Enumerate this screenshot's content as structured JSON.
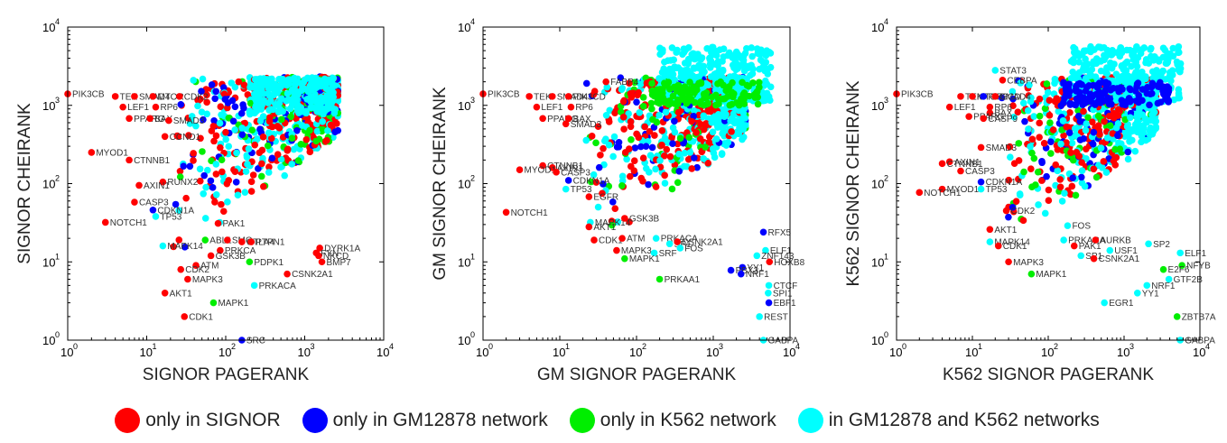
{
  "colors": {
    "only_signor": "#ff0000",
    "only_gm": "#0000ff",
    "only_k562": "#00ee00",
    "both": "#00ffff"
  },
  "legend": [
    {
      "label": "only in SIGNOR",
      "color": "#ff0000"
    },
    {
      "label": "only in GM12878 network",
      "color": "#0000ff"
    },
    {
      "label": "only in K562 network",
      "color": "#00ee00"
    },
    {
      "label": "in GM12878 and K562  networks",
      "color": "#00ffff"
    }
  ],
  "chart_data": [
    {
      "type": "scatter",
      "xlabel": "SIGNOR PAGERANK",
      "ylabel": "SIGNOR CHEIRANK",
      "xscale": "log",
      "yscale": "log",
      "xlim": [
        1,
        10000
      ],
      "ylim": [
        1,
        10000
      ],
      "x_ticks": [
        "10^0",
        "10^1",
        "10^2",
        "10^3",
        "10^4"
      ],
      "y_ticks": [
        "10^0",
        "10^1",
        "10^2",
        "10^3",
        "10^4"
      ],
      "labeled_points": [
        {
          "label": "PIK3CB",
          "x": 1,
          "y": 1400,
          "group": "only_signor"
        },
        {
          "label": "TEK",
          "x": 4,
          "y": 1300,
          "group": "only_signor"
        },
        {
          "label": "SMAD4",
          "x": 7,
          "y": 1300,
          "group": "only_signor"
        },
        {
          "label": "MTOR",
          "x": 12,
          "y": 1300,
          "group": "only_signor"
        },
        {
          "label": "CDK2",
          "x": 26,
          "y": 1300,
          "group": "only_signor"
        },
        {
          "label": "LEF1",
          "x": 5,
          "y": 950,
          "group": "only_signor"
        },
        {
          "label": "RP6",
          "x": 13,
          "y": 950,
          "group": "only_signor"
        },
        {
          "label": "PPARG",
          "x": 6,
          "y": 680,
          "group": "only_signor"
        },
        {
          "label": "BAX",
          "x": 11,
          "y": 680,
          "group": "only_signor"
        },
        {
          "label": "SMAD3",
          "x": 19,
          "y": 640,
          "group": "only_signor"
        },
        {
          "label": "CCND1",
          "x": 17,
          "y": 400,
          "group": "only_signor"
        },
        {
          "label": "MYOD1",
          "x": 2,
          "y": 250,
          "group": "only_signor"
        },
        {
          "label": "CTNNB1",
          "x": 6,
          "y": 200,
          "group": "only_signor"
        },
        {
          "label": "RUNX2",
          "x": 16,
          "y": 105,
          "group": "only_signor"
        },
        {
          "label": "AXIN1",
          "x": 8,
          "y": 95,
          "group": "only_signor"
        },
        {
          "label": "CASP3",
          "x": 7,
          "y": 58,
          "group": "only_signor"
        },
        {
          "label": "CDKN1A",
          "x": 12,
          "y": 46,
          "group": "only_gm"
        },
        {
          "label": "TP53",
          "x": 13,
          "y": 38,
          "group": "both"
        },
        {
          "label": "NOTCH1",
          "x": 3,
          "y": 32,
          "group": "only_signor"
        },
        {
          "label": "PAK1",
          "x": 80,
          "y": 31,
          "group": "only_signor"
        },
        {
          "label": "ABL1",
          "x": 55,
          "y": 19,
          "group": "only_k562"
        },
        {
          "label": "SMO",
          "x": 105,
          "y": 19,
          "group": "only_signor"
        },
        {
          "label": "CTLA4",
          "x": 160,
          "y": 18,
          "group": "only_signor"
        },
        {
          "label": "PTPN1",
          "x": 210,
          "y": 18,
          "group": "only_signor"
        },
        {
          "label": "MAPK14",
          "x": 16,
          "y": 16,
          "group": "both"
        },
        {
          "label": "PRKCA",
          "x": 85,
          "y": 14,
          "group": "only_signor"
        },
        {
          "label": "GSK3B",
          "x": 65,
          "y": 12,
          "group": "only_signor"
        },
        {
          "label": "DYRK1A",
          "x": 1550,
          "y": 15,
          "group": "only_signor"
        },
        {
          "label": "FYN",
          "x": 1400,
          "y": 13,
          "group": "only_signor"
        },
        {
          "label": "NKCD",
          "x": 1500,
          "y": 12,
          "group": "only_signor"
        },
        {
          "label": "BMP7",
          "x": 1650,
          "y": 10,
          "group": "only_signor"
        },
        {
          "label": "PDPK1",
          "x": 200,
          "y": 10,
          "group": "only_k562"
        },
        {
          "label": "ATM",
          "x": 42,
          "y": 9,
          "group": "only_signor"
        },
        {
          "label": "CDK2",
          "x": 27,
          "y": 8,
          "group": "only_signor"
        },
        {
          "label": "MAPK3",
          "x": 33,
          "y": 6,
          "group": "only_signor"
        },
        {
          "label": "CSNK2A1",
          "x": 600,
          "y": 7,
          "group": "only_signor"
        },
        {
          "label": "PRKACA",
          "x": 230,
          "y": 5,
          "group": "both"
        },
        {
          "label": "AKT1",
          "x": 17,
          "y": 4,
          "group": "only_signor"
        },
        {
          "label": "MAPK1",
          "x": 70,
          "y": 3,
          "group": "only_k562"
        },
        {
          "label": "CDK1",
          "x": 30,
          "y": 2,
          "group": "only_signor"
        },
        {
          "label": "SRC",
          "x": 160,
          "y": 1,
          "group": "only_gm"
        }
      ]
    },
    {
      "type": "scatter",
      "xlabel": "GM SIGNOR PAGERANK",
      "ylabel": "GM SIGNOR CHEIRANK",
      "xscale": "log",
      "yscale": "log",
      "xlim": [
        1,
        10000
      ],
      "ylim": [
        1,
        10000
      ],
      "x_ticks": [
        "10^0",
        "10^1",
        "10^2",
        "10^3",
        "10^4"
      ],
      "y_ticks": [
        "10^0",
        "10^1",
        "10^2",
        "10^3",
        "10^4"
      ],
      "labeled_points": [
        {
          "label": "PIK3CB",
          "x": 1,
          "y": 1400,
          "group": "only_signor"
        },
        {
          "label": "TEK",
          "x": 4,
          "y": 1300,
          "group": "only_signor"
        },
        {
          "label": "SMAD4",
          "x": 8,
          "y": 1300,
          "group": "only_signor"
        },
        {
          "label": "PIK3CD",
          "x": 13,
          "y": 1300,
          "group": "only_signor"
        },
        {
          "label": "FABP4",
          "x": 40,
          "y": 2000,
          "group": "only_signor"
        },
        {
          "label": "LEF1",
          "x": 5,
          "y": 950,
          "group": "only_signor"
        },
        {
          "label": "RP6",
          "x": 14,
          "y": 950,
          "group": "only_signor"
        },
        {
          "label": "PPARG",
          "x": 6,
          "y": 680,
          "group": "only_signor"
        },
        {
          "label": "BAX",
          "x": 13,
          "y": 680,
          "group": "only_signor"
        },
        {
          "label": "SMAD3",
          "x": 12,
          "y": 580,
          "group": "only_signor"
        },
        {
          "label": "CTNNB1",
          "x": 6,
          "y": 170,
          "group": "only_signor"
        },
        {
          "label": "AXIN1",
          "x": 8,
          "y": 160,
          "group": "only_signor"
        },
        {
          "label": "MYOD1",
          "x": 3,
          "y": 150,
          "group": "only_signor"
        },
        {
          "label": "CASP3",
          "x": 9,
          "y": 140,
          "group": "only_signor"
        },
        {
          "label": "CDKN1A",
          "x": 13,
          "y": 110,
          "group": "only_gm"
        },
        {
          "label": "TP53",
          "x": 12,
          "y": 85,
          "group": "both"
        },
        {
          "label": "EGFR",
          "x": 24,
          "y": 68,
          "group": "only_signor"
        },
        {
          "label": "NOTCH1",
          "x": 2,
          "y": 43,
          "group": "only_signor"
        },
        {
          "label": "MAPK14",
          "x": 25,
          "y": 32,
          "group": "both"
        },
        {
          "label": "AKT1",
          "x": 24,
          "y": 28,
          "group": "only_signor"
        },
        {
          "label": "GSK3B",
          "x": 70,
          "y": 36,
          "group": "only_signor"
        },
        {
          "label": "RFX5",
          "x": 4500,
          "y": 24,
          "group": "only_gm"
        },
        {
          "label": "CDK1",
          "x": 28,
          "y": 19,
          "group": "only_signor"
        },
        {
          "label": "ATM",
          "x": 65,
          "y": 20,
          "group": "only_signor"
        },
        {
          "label": "PRKACA",
          "x": 180,
          "y": 20,
          "group": "both"
        },
        {
          "label": "SP1",
          "x": 270,
          "y": 17,
          "group": "both"
        },
        {
          "label": "CSNK2A1",
          "x": 340,
          "y": 18,
          "group": "only_signor"
        },
        {
          "label": "FOS",
          "x": 370,
          "y": 15,
          "group": "both"
        },
        {
          "label": "ELF1",
          "x": 4800,
          "y": 14,
          "group": "both"
        },
        {
          "label": "ZNF143",
          "x": 3700,
          "y": 12,
          "group": "both"
        },
        {
          "label": "MAPK3",
          "x": 55,
          "y": 14,
          "group": "only_signor"
        },
        {
          "label": "SRF",
          "x": 170,
          "y": 13,
          "group": "both"
        },
        {
          "label": "HOXB8",
          "x": 5400,
          "y": 10,
          "group": "only_signor"
        },
        {
          "label": "MAPK1",
          "x": 70,
          "y": 11,
          "group": "only_k562"
        },
        {
          "label": "YY1",
          "x": 2400,
          "y": 8.5,
          "group": "only_gm"
        },
        {
          "label": "PBX3",
          "x": 1700,
          "y": 7.8,
          "group": "only_gm"
        },
        {
          "label": "NRF1",
          "x": 2300,
          "y": 7,
          "group": "only_gm"
        },
        {
          "label": "PRKAA1",
          "x": 200,
          "y": 6,
          "group": "only_k562"
        },
        {
          "label": "CTCF",
          "x": 5300,
          "y": 5,
          "group": "both"
        },
        {
          "label": "SPI1",
          "x": 5200,
          "y": 4,
          "group": "both"
        },
        {
          "label": "EBF1",
          "x": 5300,
          "y": 3,
          "group": "only_gm"
        },
        {
          "label": "REST",
          "x": 4000,
          "y": 2,
          "group": "both"
        },
        {
          "label": "GABPA",
          "x": 4500,
          "y": 1,
          "group": "both"
        }
      ]
    },
    {
      "type": "scatter",
      "xlabel": "K562 SIGNOR PAGERANK",
      "ylabel": "K562 SIGNOR CHEIRANK",
      "xscale": "log",
      "yscale": "log",
      "xlim": [
        1,
        10000
      ],
      "ylim": [
        1,
        10000
      ],
      "x_ticks": [
        "10^0",
        "10^1",
        "10^2",
        "10^3",
        "10^4"
      ],
      "y_ticks": [
        "10^0",
        "10^1",
        "10^2",
        "10^3",
        "10^4"
      ],
      "labeled_points": [
        {
          "label": "STAT3",
          "x": 20,
          "y": 2800,
          "group": "both"
        },
        {
          "label": "CEBPA",
          "x": 25,
          "y": 2100,
          "group": "only_signor"
        },
        {
          "label": "PIK3CB",
          "x": 1,
          "y": 1400,
          "group": "only_signor"
        },
        {
          "label": "TEK",
          "x": 7,
          "y": 1300,
          "group": "only_signor"
        },
        {
          "label": "MTOR",
          "x": 10,
          "y": 1300,
          "group": "only_signor"
        },
        {
          "label": "PIK3CD",
          "x": 14,
          "y": 1300,
          "group": "only_gm"
        },
        {
          "label": "SMAD4",
          "x": 20,
          "y": 1300,
          "group": "only_signor"
        },
        {
          "label": "LEF1",
          "x": 5,
          "y": 950,
          "group": "only_signor"
        },
        {
          "label": "RP6",
          "x": 17,
          "y": 950,
          "group": "only_signor"
        },
        {
          "label": "BAX",
          "x": 17,
          "y": 800,
          "group": "only_signor"
        },
        {
          "label": "PPARG",
          "x": 9,
          "y": 720,
          "group": "only_signor"
        },
        {
          "label": "CASP9",
          "x": 14,
          "y": 680,
          "group": "only_signor"
        },
        {
          "label": "SMAD3",
          "x": 13,
          "y": 290,
          "group": "only_signor"
        },
        {
          "label": "AXIN1",
          "x": 5,
          "y": 190,
          "group": "only_signor"
        },
        {
          "label": "CTNNB1",
          "x": 4,
          "y": 180,
          "group": "only_signor"
        },
        {
          "label": "CASP3",
          "x": 7,
          "y": 145,
          "group": "only_signor"
        },
        {
          "label": "CDKN1A",
          "x": 13,
          "y": 105,
          "group": "only_gm"
        },
        {
          "label": "MYOD1",
          "x": 4,
          "y": 85,
          "group": "only_signor"
        },
        {
          "label": "TP53",
          "x": 13,
          "y": 85,
          "group": "both"
        },
        {
          "label": "NOTCH1",
          "x": 2,
          "y": 77,
          "group": "only_signor"
        },
        {
          "label": "CDK2",
          "x": 28,
          "y": 45,
          "group": "only_signor"
        },
        {
          "label": "FOS",
          "x": 180,
          "y": 29,
          "group": "both"
        },
        {
          "label": "AKT1",
          "x": 17,
          "y": 26,
          "group": "only_signor"
        },
        {
          "label": "MAPK14",
          "x": 17,
          "y": 18,
          "group": "both"
        },
        {
          "label": "CDK1",
          "x": 22,
          "y": 16,
          "group": "only_signor"
        },
        {
          "label": "PRKACA",
          "x": 160,
          "y": 19,
          "group": "both"
        },
        {
          "label": "AURKB",
          "x": 420,
          "y": 19,
          "group": "only_signor"
        },
        {
          "label": "PAK1",
          "x": 220,
          "y": 16,
          "group": "only_signor"
        },
        {
          "label": "USF1",
          "x": 650,
          "y": 14,
          "group": "both"
        },
        {
          "label": "SP2",
          "x": 2100,
          "y": 17,
          "group": "both"
        },
        {
          "label": "ELF1",
          "x": 5500,
          "y": 13,
          "group": "both"
        },
        {
          "label": "SP1",
          "x": 270,
          "y": 12,
          "group": "both"
        },
        {
          "label": "CSNK2A1",
          "x": 400,
          "y": 11,
          "group": "only_signor"
        },
        {
          "label": "MAPK3",
          "x": 30,
          "y": 10,
          "group": "only_signor"
        },
        {
          "label": "NFYB",
          "x": 5800,
          "y": 9,
          "group": "only_k562"
        },
        {
          "label": "E2F6",
          "x": 3300,
          "y": 8,
          "group": "only_k562"
        },
        {
          "label": "MAPK1",
          "x": 60,
          "y": 7,
          "group": "only_k562"
        },
        {
          "label": "GTF2B",
          "x": 3900,
          "y": 6,
          "group": "both"
        },
        {
          "label": "NRF1",
          "x": 2000,
          "y": 5,
          "group": "both"
        },
        {
          "label": "YY1",
          "x": 1500,
          "y": 4,
          "group": "both"
        },
        {
          "label": "EGR1",
          "x": 550,
          "y": 3,
          "group": "both"
        },
        {
          "label": "ZBTB7A",
          "x": 5000,
          "y": 2,
          "group": "only_k562"
        },
        {
          "label": "GABPA",
          "x": 5500,
          "y": 1,
          "group": "both"
        }
      ]
    }
  ]
}
